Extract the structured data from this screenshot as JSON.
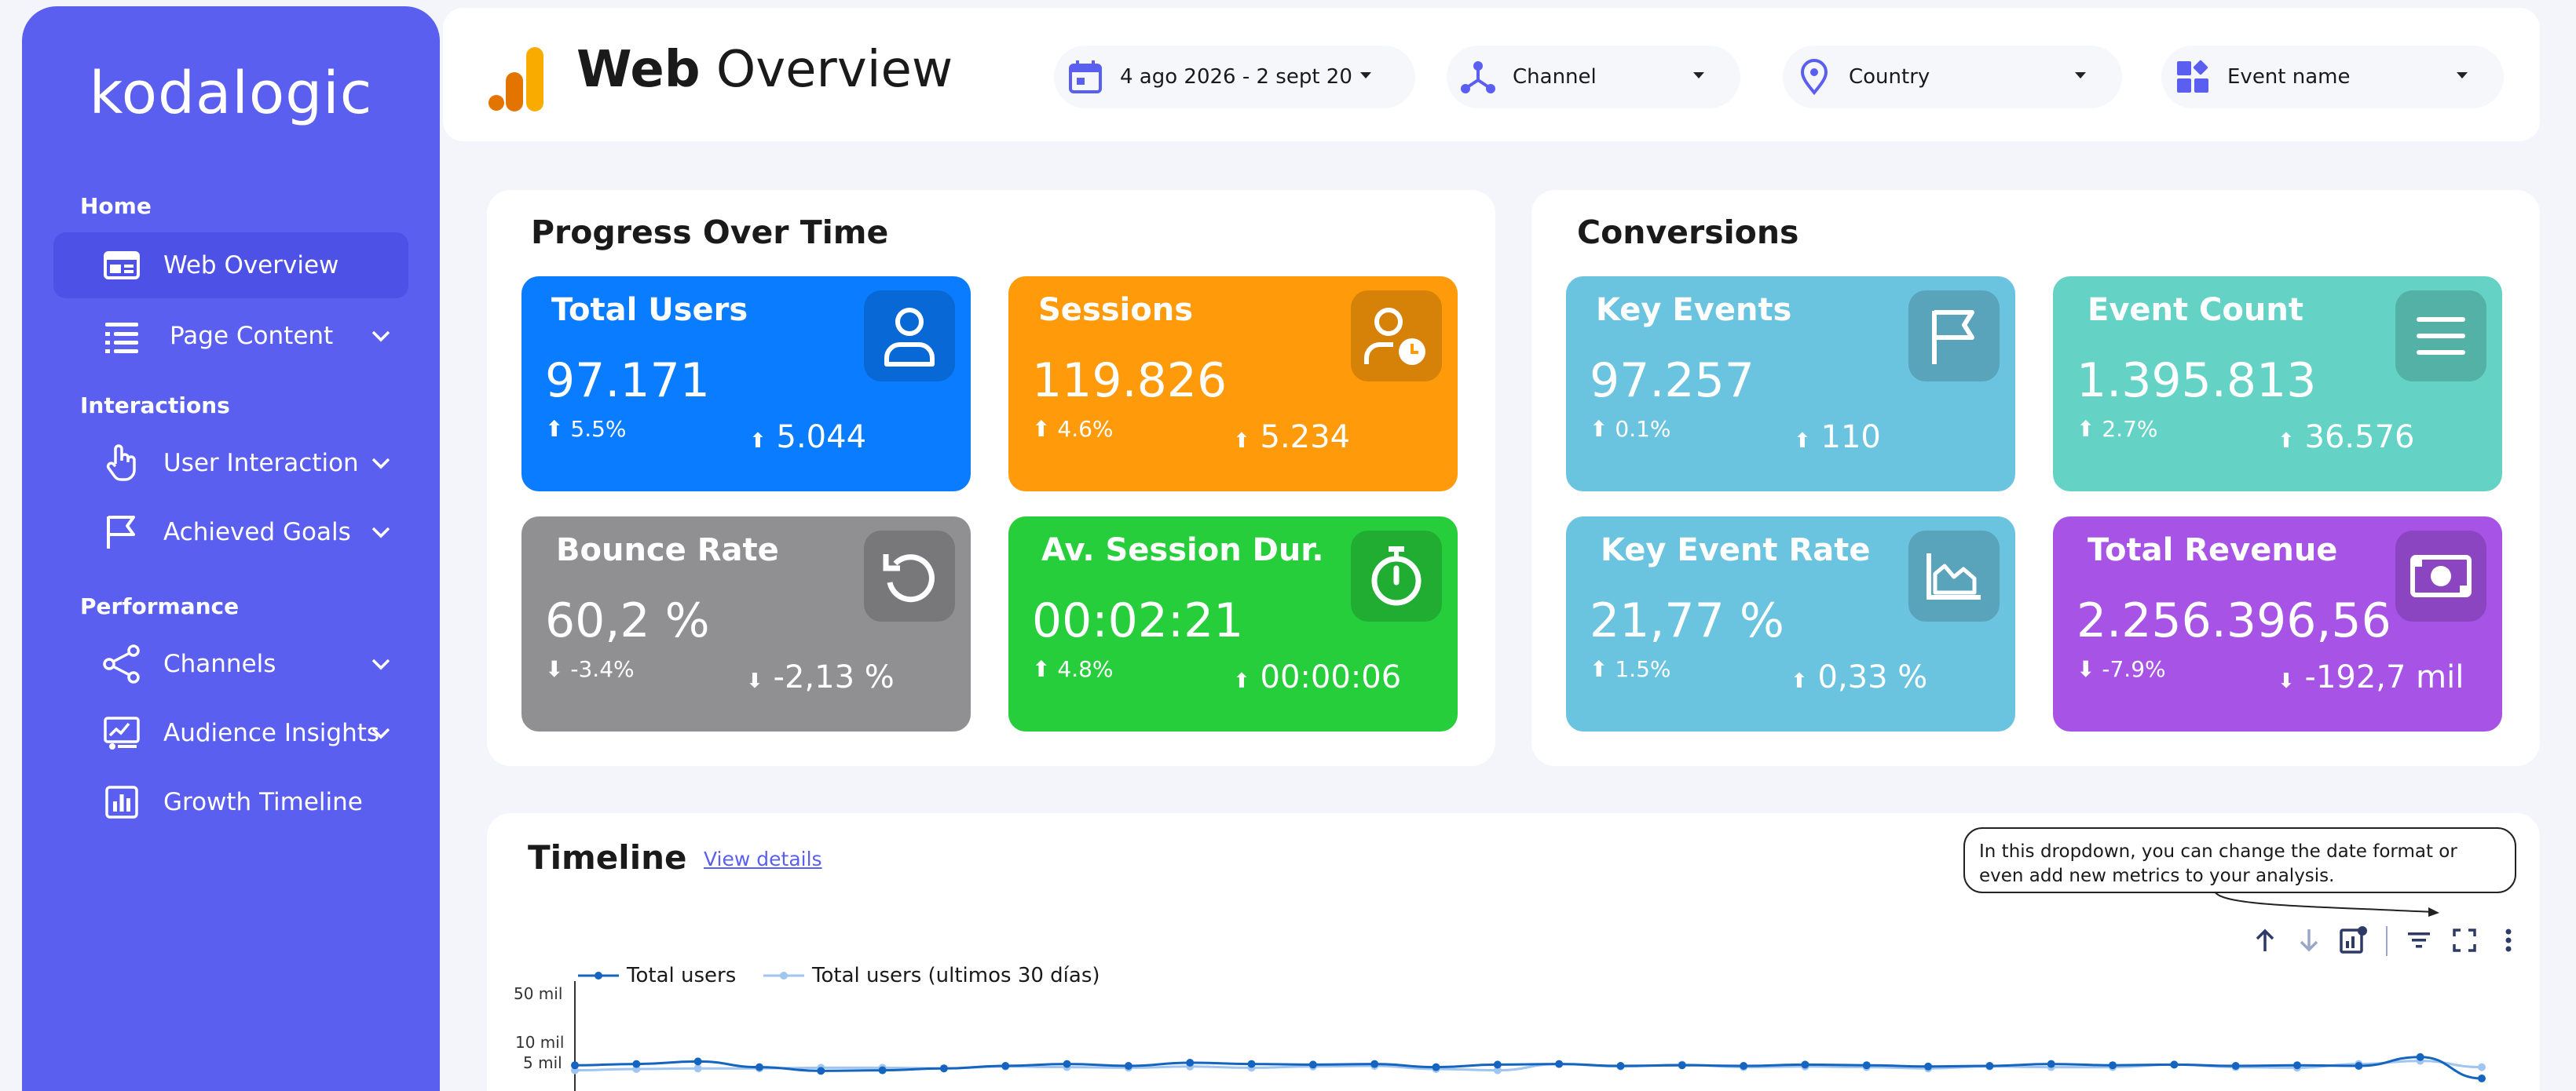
{
  "sidebar": {
    "logo": "kodalogic",
    "sections": {
      "home": "Home",
      "interactions": "Interactions",
      "performance": "Performance"
    },
    "items": [
      {
        "label": "Web Overview",
        "icon": "layout-icon",
        "active": true
      },
      {
        "label": "Page Content",
        "icon": "list-icon",
        "expandable": true
      },
      {
        "label": "User Interaction",
        "icon": "hand-pointer-icon",
        "expandable": true
      },
      {
        "label": "Achieved Goals",
        "icon": "flag-icon",
        "expandable": true
      },
      {
        "label": "Channels",
        "icon": "share-nodes-icon",
        "expandable": true
      },
      {
        "label": "Audience Insights",
        "icon": "audience-chart-icon",
        "expandable": true
      },
      {
        "label": "Growth Timeline",
        "icon": "bar-chart-icon",
        "expandable": false
      }
    ]
  },
  "header": {
    "title_bold": "Web",
    "title_rest": "Overview",
    "filters": {
      "date": "4 ago 2026 - 2 sept 20",
      "channel": "Channel",
      "country": "Country",
      "event": "Event name"
    }
  },
  "progress": {
    "title": "Progress Over Time",
    "cards": [
      {
        "title": "Total Users",
        "value": "97.171",
        "pct": "5.5%",
        "delta": "5.044",
        "dir": "up",
        "color": "#0a7cff",
        "icon": "user-icon"
      },
      {
        "title": "Sessions",
        "value": "119.826",
        "pct": "4.6%",
        "delta": "5.234",
        "dir": "up",
        "color": "#ff9a0a",
        "icon": "user-clock-icon"
      },
      {
        "title": "Bounce Rate",
        "value": "60,2 %",
        "pct": "-3.4%",
        "delta": "-2,13 %",
        "dir": "down",
        "color": "#909092",
        "icon": "undo-icon"
      },
      {
        "title": "Av. Session Dur.",
        "value": "00:02:21",
        "pct": "4.8%",
        "delta": "00:00:06",
        "dir": "up",
        "color": "#27ce3c",
        "icon": "stopwatch-icon"
      }
    ]
  },
  "conversions": {
    "title": "Conversions",
    "cards": [
      {
        "title": "Key Events",
        "value": "97.257",
        "pct": "0.1%",
        "delta": "110",
        "dir": "up",
        "color": "#6ac3df",
        "icon": "flag-icon"
      },
      {
        "title": "Event Count",
        "value": "1.395.813",
        "pct": "2.7%",
        "delta": "36.576",
        "dir": "up",
        "color": "#64d3c6",
        "icon": "menu-icon"
      },
      {
        "title": "Key Event Rate",
        "value": "21,77 %",
        "pct": "1.5%",
        "delta": "0,33 %",
        "dir": "up",
        "color": "#6ac3df",
        "icon": "area-chart-icon"
      },
      {
        "title": "Total Revenue",
        "value": "2.256.396,56",
        "pct": "-7.9%",
        "delta": "-192,7 mil",
        "dir": "down",
        "color": "#a653e6",
        "icon": "money-icon"
      }
    ]
  },
  "timeline": {
    "title": "Timeline",
    "link": "View details",
    "note": "In this dropdown, you can change the date format or even add new metrics to your analysis."
  },
  "chart_data": {
    "type": "line",
    "series": [
      {
        "name": "Total users",
        "color": "#1565c0",
        "values": [
          4100,
          4300,
          4700,
          3800,
          3200,
          3300,
          3600,
          4000,
          4300,
          4000,
          4500,
          4300,
          4200,
          4300,
          3800,
          4200,
          4300,
          4000,
          4100,
          4000,
          4200,
          4100,
          3900,
          4000,
          4300,
          4100,
          4200,
          4000,
          4100,
          4000,
          5600,
          2000
        ]
      },
      {
        "name": "Total users (ultimos 30 días)",
        "color": "#9fc5f0",
        "values": [
          3300,
          3500,
          3600,
          3600,
          3700,
          3700,
          3600,
          3900,
          3800,
          3700,
          3900,
          3700,
          3900,
          4000,
          3500,
          3300,
          4300,
          3900,
          4200,
          3800,
          3900,
          3800,
          3600,
          3900,
          3800,
          3800,
          4200,
          3800,
          3700,
          4300,
          4800,
          3800
        ]
      }
    ],
    "y_ticks": [
      "50 mil",
      "10 mil",
      "5 mil"
    ],
    "ylim": [
      0,
      50000
    ]
  }
}
